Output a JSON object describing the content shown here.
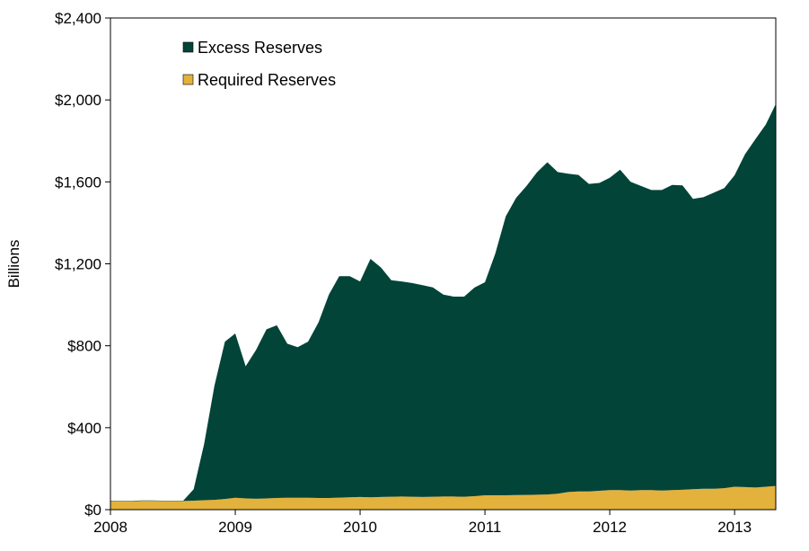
{
  "chart_data": {
    "type": "area",
    "stacked": true,
    "ylabel": "Billions",
    "xlabel": "",
    "title": "",
    "xlim": [
      2008,
      2013.33
    ],
    "ylim": [
      0,
      2400
    ],
    "y_ticks": [
      0,
      400,
      800,
      1200,
      1600,
      2000,
      2400
    ],
    "y_tick_labels": [
      "$0",
      "$400",
      "$800",
      "$1,200",
      "$1,600",
      "$2,000",
      "$2,400"
    ],
    "x_ticks": [
      2008,
      2009,
      2010,
      2011,
      2012,
      2013
    ],
    "x_tick_labels": [
      "2008",
      "2009",
      "2010",
      "2011",
      "2012",
      "2013"
    ],
    "grid": false,
    "legend_position": "top-left",
    "x": [
      2008.0,
      2008.083,
      2008.167,
      2008.25,
      2008.333,
      2008.417,
      2008.5,
      2008.583,
      2008.667,
      2008.75,
      2008.833,
      2008.917,
      2009.0,
      2009.083,
      2009.167,
      2009.25,
      2009.333,
      2009.417,
      2009.5,
      2009.583,
      2009.667,
      2009.75,
      2009.833,
      2009.917,
      2010.0,
      2010.083,
      2010.167,
      2010.25,
      2010.333,
      2010.417,
      2010.5,
      2010.583,
      2010.667,
      2010.75,
      2010.833,
      2010.917,
      2011.0,
      2011.083,
      2011.167,
      2011.25,
      2011.333,
      2011.417,
      2011.5,
      2011.583,
      2011.667,
      2011.75,
      2011.833,
      2011.917,
      2012.0,
      2012.083,
      2012.167,
      2012.25,
      2012.333,
      2012.417,
      2012.5,
      2012.583,
      2012.667,
      2012.75,
      2012.833,
      2012.917,
      2013.0,
      2013.083,
      2013.167,
      2013.25,
      2013.33
    ],
    "series": [
      {
        "name": "Required Reserves",
        "color": "#E3B23C",
        "values": [
          42,
          41,
          41,
          43,
          43,
          42,
          42,
          42,
          44,
          46,
          48,
          52,
          58,
          55,
          53,
          55,
          57,
          58,
          58,
          58,
          57,
          57,
          59,
          60,
          62,
          60,
          62,
          63,
          64,
          63,
          62,
          63,
          64,
          64,
          63,
          66,
          70,
          70,
          70,
          71,
          72,
          73,
          74,
          78,
          86,
          89,
          89,
          92,
          95,
          95,
          93,
          95,
          95,
          93,
          95,
          97,
          100,
          102,
          102,
          105,
          112,
          110,
          108,
          112,
          116
        ]
      },
      {
        "name": "Excess Reserves",
        "color": "#034438",
        "values": [
          2,
          2,
          2,
          2,
          2,
          2,
          2,
          2,
          56,
          274,
          556,
          768,
          802,
          645,
          727,
          825,
          843,
          752,
          735,
          762,
          858,
          993,
          1081,
          1080,
          1052,
          1164,
          1120,
          1057,
          1050,
          1043,
          1034,
          1022,
          986,
          976,
          977,
          1018,
          1040,
          1180,
          1362,
          1451,
          1508,
          1573,
          1622,
          1570,
          1554,
          1545,
          1501,
          1503,
          1525,
          1565,
          1507,
          1485,
          1465,
          1467,
          1490,
          1486,
          1417,
          1423,
          1445,
          1465,
          1520,
          1625,
          1700,
          1768,
          1864
        ]
      }
    ]
  }
}
